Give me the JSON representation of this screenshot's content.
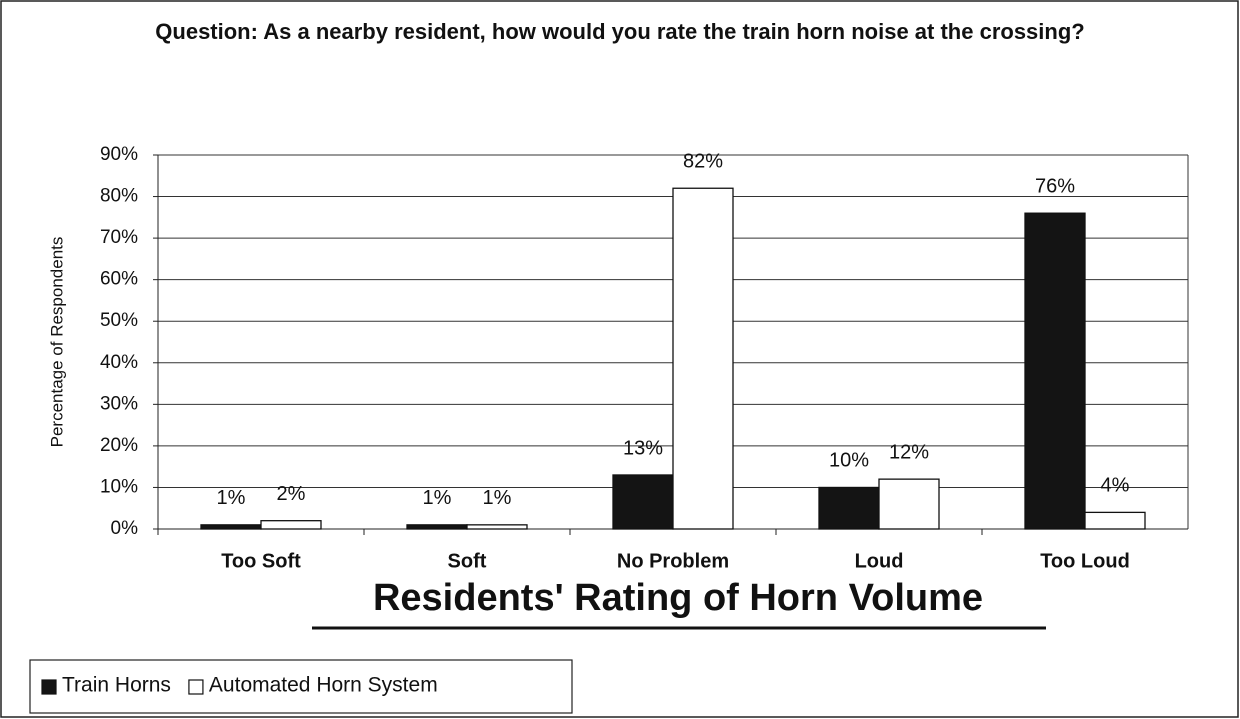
{
  "chart_data": {
    "type": "bar",
    "title": "Question: As a nearby resident, how would you rate the train horn noise at the crossing?",
    "x_label": "Residents' Rating of Horn Volume",
    "y_label": "Percentage of Respondents",
    "categories": [
      "Too Soft",
      "Soft",
      "No Problem",
      "Loud",
      "Too Loud"
    ],
    "series": [
      {
        "name": "Train Horns",
        "color": "#141414",
        "values": [
          1,
          1,
          13,
          10,
          76
        ],
        "value_labels": [
          "1%",
          "1%",
          "13%",
          "10%",
          "76%"
        ]
      },
      {
        "name": "Automated Horn System",
        "color": "#ffffff",
        "values": [
          2,
          1,
          82,
          12,
          4
        ],
        "value_labels": [
          "2%",
          "1%",
          "82%",
          "12%",
          "4%"
        ]
      }
    ],
    "ylim": [
      0,
      90
    ],
    "yticks": [
      {
        "value": 0,
        "label": "0%"
      },
      {
        "value": 10,
        "label": "10%"
      },
      {
        "value": 20,
        "label": "20%"
      },
      {
        "value": 30,
        "label": "30%"
      },
      {
        "value": 40,
        "label": "40%"
      },
      {
        "value": 50,
        "label": "50%"
      },
      {
        "value": 60,
        "label": "60%"
      },
      {
        "value": 70,
        "label": "70%"
      },
      {
        "value": 80,
        "label": "80%"
      },
      {
        "value": 90,
        "label": "90%"
      }
    ],
    "grid": true,
    "legend": "bottom-left"
  }
}
